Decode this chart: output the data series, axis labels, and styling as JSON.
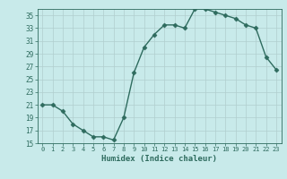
{
  "x": [
    0,
    1,
    2,
    3,
    4,
    5,
    6,
    7,
    8,
    9,
    10,
    11,
    12,
    13,
    14,
    15,
    16,
    17,
    18,
    19,
    20,
    21,
    22,
    23
  ],
  "y": [
    21,
    21,
    20,
    18,
    17,
    16,
    16,
    15.5,
    19,
    26,
    30,
    32,
    33.5,
    33.5,
    33,
    36,
    36,
    35.5,
    35,
    34.5,
    33.5,
    33,
    28.5,
    26.5
  ],
  "line_color": "#2e6b5e",
  "marker": "D",
  "marker_size": 2.5,
  "bg_color": "#c8eaea",
  "grid_color": "#b0cece",
  "xlabel": "Humidex (Indice chaleur)",
  "ylim": [
    15,
    36
  ],
  "xlim": [
    -0.5,
    23.5
  ],
  "yticks": [
    15,
    17,
    19,
    21,
    23,
    25,
    27,
    29,
    31,
    33,
    35
  ],
  "xtick_labels": [
    "0",
    "1",
    "2",
    "3",
    "4",
    "5",
    "6",
    "7",
    "8",
    "9",
    "10",
    "11",
    "12",
    "13",
    "14",
    "15",
    "16",
    "17",
    "18",
    "19",
    "20",
    "21",
    "22",
    "23"
  ],
  "font_color": "#2e6b5e"
}
